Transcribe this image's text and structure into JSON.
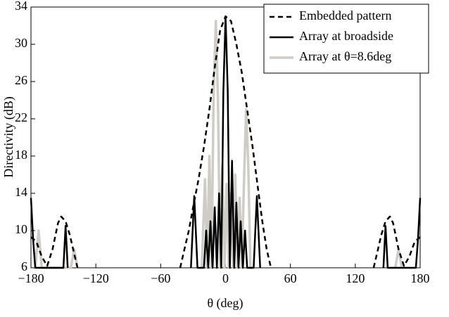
{
  "chart_data": {
    "type": "line",
    "xlabel": "θ (deg)",
    "ylabel": "Directivity (dB)",
    "xlim": [
      -180,
      180
    ],
    "xticks": [
      {
        "value": -180,
        "label": "−180"
      },
      {
        "value": -120,
        "label": "−120"
      },
      {
        "value": -60,
        "label": "−60"
      },
      0,
      60,
      120,
      180
    ],
    "ylim": [
      6,
      34
    ],
    "yticks": [
      6,
      10,
      14,
      18,
      22,
      26,
      30,
      34
    ],
    "legend": "top-right",
    "series": [
      {
        "name": "Embedded pattern",
        "color": "#000000",
        "style": "dashed",
        "x": [
          -180,
          -175,
          -170,
          -165,
          -160,
          -155,
          -152,
          -148,
          -144,
          -140,
          -137,
          -100,
          -42,
          -38,
          -34,
          -30,
          -25,
          -20,
          -15,
          -10,
          -5,
          0,
          5,
          10,
          15,
          20,
          25,
          30,
          34,
          38,
          42,
          100,
          137,
          140,
          144,
          148,
          152,
          155,
          160,
          165,
          170,
          175,
          180
        ],
        "values": [
          9.3,
          8.8,
          7.2,
          6.2,
          8,
          10.8,
          11.5,
          11,
          9.5,
          7.5,
          6,
          null,
          6,
          8,
          10,
          12.5,
          15.5,
          19,
          23,
          27.5,
          31.5,
          33,
          32.5,
          30,
          27,
          23,
          19,
          14.5,
          11,
          8,
          6,
          null,
          6,
          7.5,
          9.5,
          11,
          11.5,
          10.8,
          8,
          6.2,
          7.2,
          8.8,
          9.3
        ]
      },
      {
        "name": "Array at broadside",
        "color": "#000000",
        "style": "solid",
        "x": [
          -180,
          -178,
          -176,
          -150,
          -148,
          -146,
          -100,
          -32,
          -29,
          -26,
          -20,
          -18,
          -16,
          -14,
          -12,
          -10,
          -8,
          -6,
          -4,
          -2,
          0,
          2,
          4,
          6,
          8,
          10,
          12,
          14,
          16,
          18,
          20,
          26,
          29,
          32,
          100,
          146,
          148,
          150,
          176,
          178,
          180
        ],
        "values": [
          13.5,
          9,
          6,
          6,
          10.5,
          6,
          null,
          6,
          13.7,
          6,
          6,
          10,
          6,
          11,
          6,
          12.5,
          6,
          14,
          6,
          25,
          33,
          25,
          6,
          17.5,
          6,
          13,
          6,
          11,
          6,
          10,
          6,
          6,
          13.7,
          6,
          null,
          6,
          10.5,
          6,
          6,
          9,
          13.5
        ]
      },
      {
        "name": "Array at θ=8.6deg",
        "color": "#cfccc6",
        "style": "solid",
        "x": [
          -176,
          -173,
          -170,
          -143,
          -140,
          -137,
          -100,
          -22,
          -19,
          -17,
          -15,
          -13,
          -11,
          -9,
          -7,
          -5,
          -3,
          -1,
          1,
          3,
          5,
          7,
          9,
          11,
          13,
          15,
          17,
          19,
          21,
          23,
          25,
          100,
          157,
          160,
          163
        ],
        "values": [
          6,
          10,
          6,
          6,
          8,
          6,
          null,
          6,
          15.5,
          6,
          18,
          6,
          25,
          32.5,
          24,
          6,
          17,
          6,
          15,
          6,
          14,
          6,
          16,
          6,
          13.5,
          6,
          15,
          23,
          17,
          6,
          6,
          null,
          6,
          8,
          6
        ]
      }
    ]
  }
}
